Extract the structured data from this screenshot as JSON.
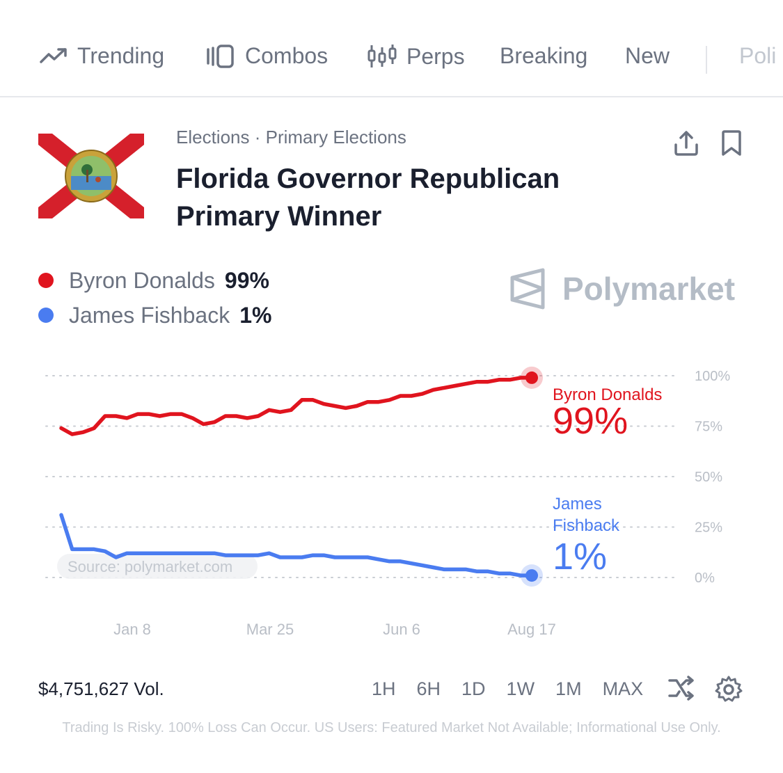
{
  "nav": {
    "items": [
      {
        "label": "Trending",
        "icon": "trending-icon"
      },
      {
        "label": "Combos",
        "icon": "combos-icon"
      },
      {
        "label": "Perps",
        "icon": "candlestick-icon"
      },
      {
        "label": "Breaking"
      },
      {
        "label": "New"
      },
      {
        "label": "Poli"
      }
    ]
  },
  "market": {
    "breadcrumb": "Elections · Primary Elections",
    "title": "Florida Governor Republican Primary Winner"
  },
  "legend": [
    {
      "name": "Byron Donalds",
      "value": "99%",
      "color": "#e0141e"
    },
    {
      "name": "James Fishback",
      "value": "1%",
      "color": "#4a7cf0"
    }
  ],
  "brand": {
    "name": "Polymarket"
  },
  "chart_data": {
    "type": "line",
    "x_ticks": [
      "Jan 8",
      "Mar 25",
      "Jun 6",
      "Aug 17"
    ],
    "y_ticks": [
      "100%",
      "75%",
      "50%",
      "25%",
      "0%"
    ],
    "ylim": [
      0,
      100
    ],
    "grid": true,
    "source": "Source: polymarket.com",
    "series": [
      {
        "name": "Byron Donalds",
        "label_value": "99%",
        "color": "#e0141e",
        "values": [
          74,
          71,
          72,
          74,
          80,
          80,
          79,
          81,
          81,
          80,
          81,
          81,
          79,
          76,
          77,
          80,
          80,
          79,
          80,
          83,
          82,
          83,
          88,
          88,
          86,
          85,
          84,
          85,
          87,
          87,
          88,
          90,
          90,
          91,
          93,
          94,
          95,
          96,
          97,
          97,
          98,
          98,
          99,
          99
        ]
      },
      {
        "name": "James Fishback",
        "label_value": "1%",
        "color": "#4a7cf0",
        "values": [
          31,
          14,
          14,
          14,
          13,
          10,
          12,
          12,
          12,
          12,
          12,
          12,
          12,
          12,
          12,
          11,
          11,
          11,
          11,
          12,
          10,
          10,
          10,
          11,
          11,
          10,
          10,
          10,
          10,
          9,
          8,
          8,
          7,
          6,
          5,
          4,
          4,
          4,
          3,
          3,
          2,
          2,
          1,
          1
        ]
      }
    ]
  },
  "footer": {
    "volume": "$4,751,627 Vol.",
    "ranges": [
      "1H",
      "6H",
      "1D",
      "1W",
      "1M",
      "MAX"
    ],
    "disclaimer": "Trading Is Risky. 100% Loss Can Occur. US Users: Featured Market Not Available; Informational Use Only."
  },
  "colors": {
    "accent_red": "#e0141e",
    "accent_blue": "#4a7cf0",
    "muted": "#6b7280"
  }
}
